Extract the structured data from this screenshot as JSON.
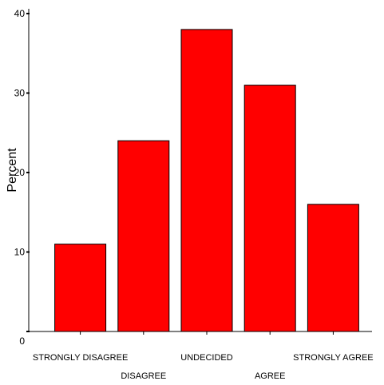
{
  "chart_data": {
    "type": "bar",
    "title": "",
    "xlabel": "",
    "ylabel": "Percent",
    "ylim": [
      0,
      40
    ],
    "yticks": [
      0,
      10,
      20,
      30,
      40
    ],
    "categories": [
      "STRONGLY DISAGREE",
      "DISAGREE",
      "UNDECIDED",
      "AGREE",
      "STRONGLY AGREE"
    ],
    "values": [
      11,
      24,
      38,
      31,
      16
    ],
    "bar_color": "#ff0000",
    "bar_edge_color": "#000000",
    "grid": false,
    "legend": "none"
  }
}
